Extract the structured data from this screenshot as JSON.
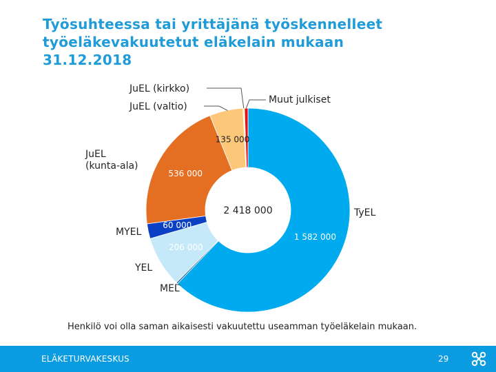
{
  "title_lines": [
    "Työsuhteessa tai yrittäjänä työskennelleet",
    "työeläkevakuutetut eläkelain mukaan",
    "31.12.2018"
  ],
  "chart_data": {
    "type": "pie",
    "total_label": "2 418 000",
    "slices": [
      {
        "name": "TyEL",
        "value": 1582000,
        "value_label": "1 582 000",
        "color": "#00aaee"
      },
      {
        "name": "MEL",
        "value": 6000,
        "value_label": "",
        "color": "#1a5a9e"
      },
      {
        "name": "YEL",
        "value": 206000,
        "value_label": "206 000",
        "color": "#c6e9fa"
      },
      {
        "name": "MYEL",
        "value": 60000,
        "value_label": "60 000",
        "color": "#0b3fc4"
      },
      {
        "name": "JuEL\n(kunta-ala)",
        "value": 536000,
        "value_label": "536 000",
        "color": "#e46f22"
      },
      {
        "name": "JuEL (valtio)",
        "value": 135000,
        "value_label": "135 000",
        "color": "#fdc77a"
      },
      {
        "name": "JuEL (kirkko)",
        "value": 6000,
        "value_label": "",
        "color": "#fff2b3"
      },
      {
        "name": "Muut julkiset",
        "value": 14000,
        "value_label": "",
        "color": "#e0101a"
      }
    ],
    "note": "Henkilö voi olla saman aikaisesti vakuutettu  useamman työeläkelain mukaan."
  },
  "footer": {
    "org": "ELÄKETURVAKESKUS",
    "page": "29"
  },
  "colors": {
    "title": "#1f9bd7",
    "footer_bg": "#0a9be0"
  },
  "icons": {
    "logo": "etk-logo-icon"
  }
}
